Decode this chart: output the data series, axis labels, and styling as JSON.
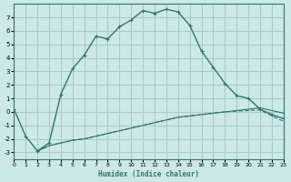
{
  "xlabel": "Humidex (Indice chaleur)",
  "background_color": "#cce8e8",
  "grid_color": "#aacccc",
  "line_color": "#2d7a6e",
  "xlim": [
    0,
    23
  ],
  "ylim": [
    -3.5,
    8.0
  ],
  "yticks": [
    -3,
    -2,
    -1,
    0,
    1,
    2,
    3,
    4,
    5,
    6,
    7
  ],
  "xticks": [
    0,
    1,
    2,
    3,
    4,
    5,
    6,
    7,
    8,
    9,
    10,
    11,
    12,
    13,
    14,
    15,
    16,
    17,
    18,
    19,
    20,
    21,
    22,
    23
  ],
  "series1_x": [
    0,
    1,
    2,
    3,
    4,
    5,
    6,
    7,
    8,
    9,
    10,
    11,
    12,
    13,
    14,
    15,
    16,
    17,
    18,
    19,
    20,
    21,
    22,
    23
  ],
  "series1_y": [
    0.2,
    -1.8,
    -2.9,
    -2.3,
    1.3,
    3.2,
    4.2,
    5.6,
    5.4,
    6.3,
    6.8,
    7.5,
    7.3,
    7.6,
    7.4,
    6.4,
    4.5,
    3.3,
    2.1,
    1.2,
    1.0,
    0.2,
    -0.2,
    -0.5
  ],
  "series2_x": [
    2,
    3,
    4,
    5,
    6,
    7,
    8,
    9,
    10,
    11,
    12,
    13,
    14,
    15,
    16,
    17,
    18,
    19,
    20,
    21,
    22,
    23
  ],
  "series2_y": [
    -2.9,
    -2.5,
    -2.3,
    -2.1,
    -2.0,
    -1.8,
    -1.6,
    -1.4,
    -1.2,
    -1.0,
    -0.8,
    -0.6,
    -0.4,
    -0.3,
    -0.2,
    -0.1,
    0.0,
    0.1,
    0.2,
    0.3,
    0.1,
    -0.1
  ],
  "series3_x": [
    2,
    3,
    4,
    5,
    6,
    7,
    8,
    9,
    10,
    11,
    12,
    13,
    14,
    15,
    16,
    17,
    18,
    19,
    20,
    21,
    22,
    23
  ],
  "series3_y": [
    -2.9,
    -2.5,
    -2.3,
    -2.1,
    -2.0,
    -1.8,
    -1.6,
    -1.4,
    -1.2,
    -1.0,
    -0.8,
    -0.6,
    -0.4,
    -0.3,
    -0.2,
    -0.1,
    0.0,
    0.05,
    0.1,
    0.15,
    -0.3,
    -0.7
  ]
}
